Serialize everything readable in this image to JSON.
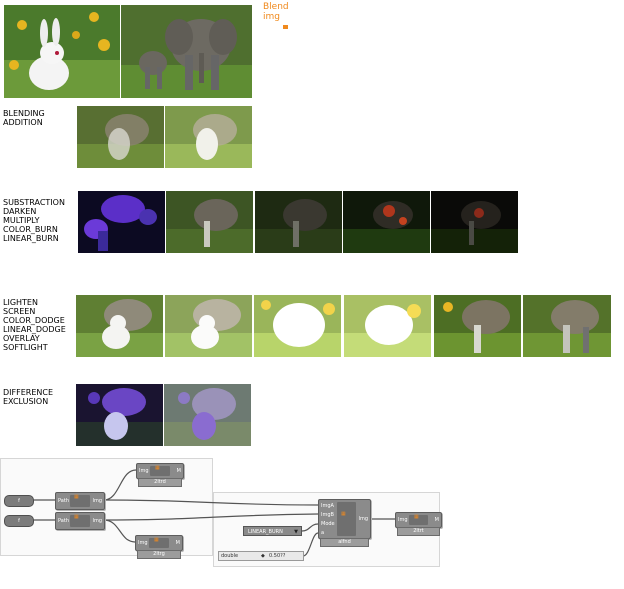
{
  "title": {
    "line1": "Blend",
    "line2": "img"
  },
  "sections": [
    {
      "labels": [
        "BLENDING",
        "ADDITION"
      ]
    },
    {
      "labels": [
        "SUBSTRACTION",
        "DARKEN",
        "MULTIPLY",
        "COLOR_BURN",
        "LINEAR_BURN"
      ]
    },
    {
      "labels": [
        "LIGHTEN",
        "SCREEN",
        "COLOR_DODGE",
        "LINEAR_DODGE",
        "OVERLAY",
        "SOFTLIGHT"
      ]
    },
    {
      "labels": [
        "DIFFERENCE",
        "EXCLUSION"
      ]
    }
  ],
  "thumbnails": {
    "source": [
      {
        "name": "rabbit-image",
        "subject": "rabbit"
      },
      {
        "name": "elephants-image",
        "subject": "elephants"
      }
    ],
    "row1": [
      "blending",
      "addition"
    ],
    "row2": [
      "substraction",
      "darken",
      "multiply",
      "color_burn",
      "linear_burn"
    ],
    "row3": [
      "lighten",
      "screen",
      "color_dodge",
      "linear_dodge",
      "overlay",
      "softlight"
    ],
    "row4": [
      "difference",
      "exclusion"
    ]
  },
  "canvas": {
    "file_chip_1": "f",
    "file_chip_2": "f",
    "load_node_1": {
      "in": "Path",
      "out": "Img"
    },
    "load_node_2": {
      "in": "Path",
      "out": "Img"
    },
    "viewer_1": {
      "in": "Img",
      "out": "M",
      "caption": "2ltrd"
    },
    "viewer_2": {
      "in": "Img",
      "out": "M",
      "caption": "2ltrg"
    },
    "blend_node": {
      "inputs": [
        "ImgA",
        "ImgB",
        "Mode",
        "a"
      ],
      "out": "Img",
      "caption": "alfnd"
    },
    "viewer_3": {
      "in": "Img",
      "out": "M",
      "caption": "2ltrt"
    },
    "mode_dropdown": "LINEAR_BURN",
    "slider": {
      "label": "double",
      "value": "0.50??"
    }
  },
  "colors": {
    "accent": "#f08a1e",
    "node": "#8b8b8b",
    "panel_border": "#d6d6d6"
  }
}
